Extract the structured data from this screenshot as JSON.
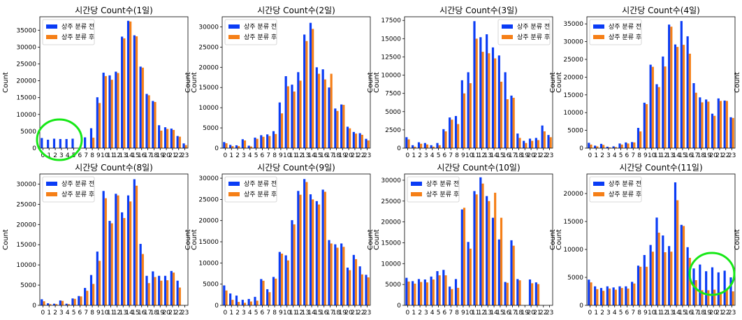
{
  "colors": {
    "before": "#0a3cf5",
    "after": "#f57f17",
    "circle": "#17e817"
  },
  "chart_data": [
    {
      "type": "bar",
      "title": "시간당 Count수(1일)",
      "ylabel": "Count",
      "ylim": [
        0,
        39000
      ],
      "yticks": [
        0,
        5000,
        10000,
        15000,
        20000,
        25000,
        30000,
        35000
      ],
      "categories": [
        "0",
        "1",
        "2",
        "3",
        "4",
        "5",
        "6",
        "7",
        "8",
        "9",
        "10",
        "11",
        "12",
        "13",
        "14",
        "15",
        "16",
        "17",
        "18",
        "19",
        "20",
        "21",
        "22",
        "23"
      ],
      "legend_position": "top-left",
      "highlight": "circle-lower-left",
      "series": [
        {
          "name": "상주 분류 전",
          "values": [
            3000,
            2500,
            2800,
            2700,
            2700,
            2800,
            0,
            3200,
            5900,
            15100,
            22400,
            21600,
            22700,
            33100,
            37800,
            33500,
            24200,
            16100,
            14000,
            6800,
            6200,
            5800,
            3600,
            1400
          ]
        },
        {
          "name": "상주 분류 후",
          "values": [
            0,
            0,
            0,
            0,
            0,
            0,
            0,
            0,
            3100,
            13400,
            21400,
            20300,
            22300,
            32600,
            37600,
            33200,
            23900,
            15700,
            13700,
            5200,
            5700,
            5400,
            3400,
            900
          ]
        }
      ]
    },
    {
      "type": "bar",
      "title": "시간당 Count수(2일)",
      "ylabel": "Count",
      "ylim": [
        0,
        32500
      ],
      "yticks": [
        0,
        5000,
        10000,
        15000,
        20000,
        25000,
        30000
      ],
      "categories": [
        "0",
        "1",
        "2",
        "3",
        "4",
        "5",
        "6",
        "7",
        "8",
        "9",
        "10",
        "11",
        "12",
        "13",
        "14",
        "15",
        "16",
        "17",
        "18",
        "19",
        "20",
        "21",
        "22",
        "23"
      ],
      "legend_position": "top-left",
      "series": [
        {
          "name": "상주 분류 전",
          "values": [
            1500,
            800,
            700,
            2200,
            600,
            2600,
            3200,
            3400,
            4200,
            11300,
            17800,
            15700,
            18800,
            28100,
            31000,
            20000,
            19500,
            15000,
            9800,
            10800,
            5300,
            4000,
            3700,
            2300
          ]
        },
        {
          "name": "상주 분류 후",
          "values": [
            1200,
            500,
            500,
            1900,
            400,
            2300,
            2800,
            3000,
            3500,
            8600,
            15300,
            14000,
            16700,
            26500,
            29500,
            18400,
            17000,
            18400,
            9200,
            10700,
            4900,
            3600,
            3300,
            1900
          ]
        }
      ]
    },
    {
      "type": "bar",
      "title": "시간당 Count수(3일)",
      "ylabel": "Count",
      "ylim": [
        0,
        18000
      ],
      "yticks": [
        0,
        2500,
        5000,
        7500,
        10000,
        12500,
        15000,
        17500
      ],
      "categories": [
        "0",
        "1",
        "2",
        "3",
        "4",
        "5",
        "6",
        "7",
        "8",
        "9",
        "10",
        "11",
        "12",
        "13",
        "14",
        "15",
        "16",
        "17",
        "18",
        "19",
        "20",
        "21",
        "22",
        "23"
      ],
      "legend_position": "top-right",
      "series": [
        {
          "name": "상주 분류 전",
          "values": [
            1500,
            400,
            800,
            700,
            400,
            700,
            2600,
            4200,
            4400,
            9300,
            10400,
            17400,
            15200,
            15600,
            13800,
            12700,
            10400,
            7200,
            2000,
            1000,
            1300,
            1400,
            3100,
            1800
          ]
        },
        {
          "name": "상주 분류 후",
          "values": [
            1200,
            200,
            600,
            500,
            200,
            400,
            2300,
            3900,
            3300,
            7500,
            8900,
            15000,
            13200,
            13000,
            12300,
            9100,
            6700,
            6900,
            1400,
            700,
            1000,
            1100,
            2300,
            1500
          ]
        }
      ]
    },
    {
      "type": "bar",
      "title": "시간당 Count수(4일)",
      "ylabel": "Count",
      "ylim": [
        0,
        37000
      ],
      "yticks": [
        0,
        5000,
        10000,
        15000,
        20000,
        25000,
        30000,
        35000
      ],
      "categories": [
        "0",
        "1",
        "2",
        "3",
        "4",
        "5",
        "6",
        "7",
        "8",
        "9",
        "10",
        "11",
        "12",
        "13",
        "14",
        "15",
        "16",
        "17",
        "18",
        "19",
        "20",
        "21",
        "22",
        "23"
      ],
      "legend_position": "top-left",
      "series": [
        {
          "name": "상주 분류 전",
          "values": [
            1500,
            700,
            1200,
            400,
            500,
            1300,
            1600,
            1700,
            5700,
            12800,
            23500,
            18000,
            25800,
            34800,
            29200,
            35800,
            31500,
            18300,
            14300,
            13700,
            9700,
            14000,
            13400,
            8700
          ]
        },
        {
          "name": "상주 분류 후",
          "values": [
            1000,
            500,
            900,
            200,
            300,
            1000,
            1300,
            1600,
            4700,
            12400,
            22900,
            17200,
            23000,
            34200,
            28500,
            29100,
            26600,
            15600,
            12900,
            13100,
            9100,
            13300,
            13300,
            8500
          ]
        }
      ]
    },
    {
      "type": "bar",
      "title": "시간당 Count수(8일)",
      "ylabel": "Count",
      "ylim": [
        0,
        32500
      ],
      "yticks": [
        0,
        5000,
        10000,
        15000,
        20000,
        25000,
        30000
      ],
      "categories": [
        "0",
        "1",
        "2",
        "3",
        "4",
        "5",
        "6",
        "7",
        "8",
        "9",
        "10",
        "11",
        "12",
        "13",
        "14",
        "15",
        "16",
        "17",
        "18",
        "19",
        "20",
        "21",
        "22",
        "23"
      ],
      "legend_position": "top-left",
      "series": [
        {
          "name": "상주 분류 전",
          "values": [
            1500,
            500,
            400,
            1200,
            400,
            1700,
            2300,
            4300,
            7500,
            13300,
            28300,
            20900,
            27600,
            23000,
            27200,
            31200,
            15200,
            7300,
            8400,
            7300,
            7300,
            8500,
            6100,
            0
          ]
        },
        {
          "name": "상주 분류 후",
          "values": [
            1000,
            300,
            300,
            1100,
            300,
            1600,
            2200,
            3600,
            5300,
            11000,
            26500,
            20300,
            27200,
            21600,
            25700,
            29600,
            12700,
            5500,
            7000,
            6100,
            6200,
            8100,
            4400,
            0
          ]
        }
      ]
    },
    {
      "type": "bar",
      "title": "시간당 Count수(9일)",
      "ylabel": "Count",
      "ylim": [
        0,
        31000
      ],
      "yticks": [
        0,
        5000,
        10000,
        15000,
        20000,
        25000,
        30000
      ],
      "categories": [
        "0",
        "1",
        "2",
        "3",
        "4",
        "5",
        "6",
        "7",
        "8",
        "9",
        "10",
        "11",
        "12",
        "13",
        "14",
        "15",
        "16",
        "17",
        "18",
        "19",
        "20",
        "21",
        "22",
        "23"
      ],
      "legend_position": "top-left",
      "series": [
        {
          "name": "상주 분류 전",
          "values": [
            4700,
            2800,
            2300,
            1300,
            1500,
            2000,
            6200,
            3800,
            6700,
            12600,
            11800,
            20100,
            27000,
            29800,
            26200,
            24600,
            27300,
            15400,
            14400,
            14600,
            8900,
            11900,
            9200,
            7200
          ]
        },
        {
          "name": "상주 분류 후",
          "values": [
            3500,
            1300,
            800,
            600,
            900,
            1100,
            5800,
            3100,
            6300,
            12200,
            10600,
            19100,
            26100,
            29100,
            25000,
            23800,
            26800,
            14600,
            13600,
            13800,
            8300,
            10900,
            7300,
            6600
          ]
        }
      ]
    },
    {
      "type": "bar",
      "title": "시간당 Count수(10일)",
      "ylabel": "Count",
      "ylim": [
        0,
        31500
      ],
      "yticks": [
        0,
        5000,
        10000,
        15000,
        20000,
        25000,
        30000
      ],
      "categories": [
        "0",
        "1",
        "2",
        "3",
        "4",
        "5",
        "6",
        "7",
        "8",
        "9",
        "10",
        "11",
        "12",
        "13",
        "14",
        "15",
        "16",
        "17",
        "18",
        "19",
        "20",
        "21",
        "22",
        "23"
      ],
      "legend_position": "top-left",
      "series": [
        {
          "name": "상주 분류 전",
          "values": [
            6600,
            5800,
            6300,
            6200,
            6900,
            8200,
            8500,
            4500,
            6300,
            23000,
            15200,
            27400,
            30700,
            26200,
            21000,
            15800,
            5600,
            15600,
            6300,
            0,
            6200,
            5500,
            0,
            0
          ]
        },
        {
          "name": "상주 분류 후",
          "values": [
            5700,
            5200,
            5600,
            5500,
            6200,
            7200,
            7200,
            3900,
            4200,
            23400,
            13600,
            26600,
            29200,
            25000,
            27000,
            21000,
            5400,
            14300,
            6000,
            0,
            5300,
            5100,
            0,
            0
          ]
        }
      ]
    },
    {
      "type": "bar",
      "title": "시간당 Count수(11일)",
      "ylabel": "Count",
      "ylim": [
        0,
        23500
      ],
      "yticks": [
        0,
        5000,
        10000,
        15000,
        20000
      ],
      "categories": [
        "0",
        "1",
        "2",
        "3",
        "4",
        "5",
        "6",
        "7",
        "8",
        "9",
        "10",
        "11",
        "12",
        "13",
        "14",
        "15",
        "16",
        "17",
        "18",
        "19",
        "20",
        "21",
        "22",
        "23"
      ],
      "legend_position": "top-left",
      "highlight": "circle-lower-right",
      "series": [
        {
          "name": "상주 분류 전",
          "values": [
            4600,
            3400,
            3100,
            3400,
            3200,
            3400,
            3400,
            4200,
            7100,
            9000,
            10800,
            15700,
            12500,
            10600,
            22000,
            14400,
            10400,
            6600,
            7300,
            6100,
            6800,
            5900,
            6200,
            5000
          ]
        },
        {
          "name": "상주 분류 후",
          "values": [
            4100,
            2900,
            2600,
            3000,
            2800,
            3100,
            3000,
            3900,
            6900,
            6900,
            9600,
            13000,
            9500,
            9600,
            18800,
            14200,
            8500,
            4500,
            2700,
            2700,
            2800,
            2400,
            2900,
            2500
          ]
        }
      ]
    }
  ]
}
